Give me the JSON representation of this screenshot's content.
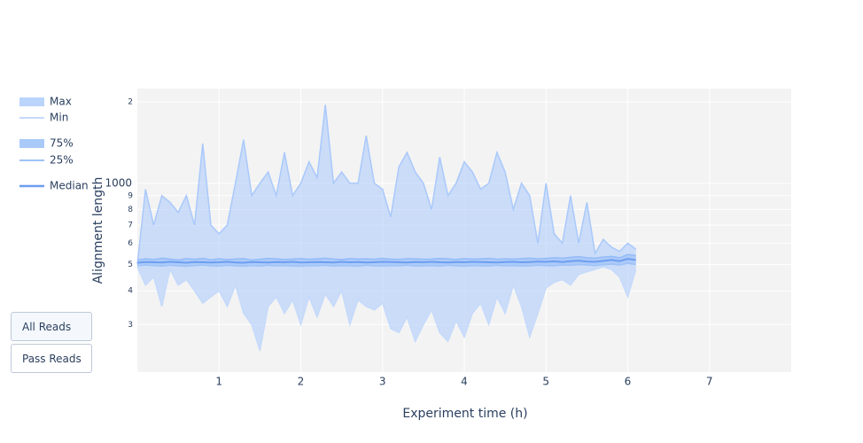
{
  "chart_data": {
    "type": "line",
    "xlabel": "Experiment time (h)",
    "ylabel": "Alignment length",
    "x": [
      0,
      0.1,
      0.2,
      0.3,
      0.4,
      0.5,
      0.6,
      0.7,
      0.8,
      0.9,
      1.0,
      1.1,
      1.2,
      1.3,
      1.4,
      1.5,
      1.6,
      1.7,
      1.8,
      1.9,
      2.0,
      2.1,
      2.2,
      2.3,
      2.4,
      2.5,
      2.6,
      2.7,
      2.8,
      2.9,
      3.0,
      3.1,
      3.2,
      3.3,
      3.4,
      3.5,
      3.6,
      3.7,
      3.8,
      3.9,
      4.0,
      4.1,
      4.2,
      4.3,
      4.4,
      4.5,
      4.6,
      4.7,
      4.8,
      4.9,
      5.0,
      5.1,
      5.2,
      5.3,
      5.4,
      5.5,
      5.6,
      5.7,
      5.8,
      5.9,
      6.0,
      6.1
    ],
    "series": [
      {
        "name": "Max",
        "color": "#a9c9fb",
        "fill": true,
        "values": [
          500,
          950,
          700,
          900,
          850,
          780,
          900,
          700,
          1400,
          700,
          650,
          700,
          1000,
          1450,
          900,
          1000,
          1100,
          900,
          1300,
          900,
          1000,
          1200,
          1050,
          1950,
          1000,
          1100,
          1000,
          1000,
          1500,
          1000,
          950,
          750,
          1150,
          1300,
          1100,
          1000,
          800,
          1250,
          900,
          1000,
          1200,
          1100,
          950,
          1000,
          1300,
          1100,
          800,
          1000,
          900,
          600,
          1000,
          650,
          600,
          900,
          600,
          850,
          550,
          620,
          580,
          560,
          600,
          570
        ]
      },
      {
        "name": "Min",
        "color": "#c5dafb",
        "fill": false,
        "values": [
          490,
          420,
          450,
          350,
          480,
          420,
          440,
          400,
          360,
          380,
          400,
          350,
          420,
          330,
          300,
          240,
          350,
          380,
          330,
          370,
          300,
          380,
          320,
          390,
          350,
          400,
          300,
          370,
          350,
          340,
          360,
          290,
          280,
          320,
          260,
          300,
          340,
          280,
          260,
          310,
          270,
          330,
          360,
          300,
          380,
          330,
          420,
          350,
          270,
          330,
          410,
          430,
          440,
          420,
          460,
          470,
          480,
          490,
          480,
          450,
          380,
          480
        ]
      },
      {
        "name": "75%",
        "color": "#94bbf7",
        "fill": true,
        "values": [
          520,
          525,
          522,
          528,
          524,
          520,
          526,
          523,
          527,
          521,
          525,
          522,
          524,
          526,
          520,
          523,
          527,
          525,
          522,
          524,
          526,
          523,
          525,
          528,
          524,
          522,
          526,
          524,
          525,
          523,
          527,
          524,
          522,
          526,
          525,
          523,
          524,
          527,
          525,
          522,
          526,
          524,
          525,
          527,
          523,
          525,
          524,
          526,
          528,
          525,
          527,
          530,
          528,
          532,
          535,
          530,
          528,
          533,
          536,
          530,
          545,
          540
        ]
      },
      {
        "name": "25%",
        "color": "#9ec2f8",
        "fill": false,
        "values": [
          495,
          498,
          496,
          494,
          497,
          495,
          493,
          496,
          498,
          495,
          494,
          497,
          495,
          493,
          496,
          494,
          497,
          495,
          496,
          494,
          493,
          496,
          495,
          497,
          494,
          496,
          495,
          493,
          497,
          495,
          494,
          496,
          495,
          497,
          494,
          495,
          496,
          494,
          497,
          495,
          493,
          496,
          495,
          494,
          497,
          495,
          496,
          494,
          495,
          497,
          496,
          495,
          498,
          497,
          500,
          498,
          496,
          499,
          502,
          498,
          505,
          500
        ]
      },
      {
        "name": "Median",
        "color": "#6d9ef0",
        "fill": false,
        "values": [
          508,
          511,
          510,
          509,
          512,
          510,
          508,
          511,
          510,
          509,
          510,
          512,
          509,
          508,
          511,
          510,
          509,
          511,
          510,
          512,
          509,
          510,
          511,
          510,
          509,
          512,
          510,
          511,
          509,
          510,
          512,
          511,
          510,
          509,
          511,
          510,
          512,
          510,
          509,
          511,
          510,
          512,
          511,
          510,
          509,
          511,
          512,
          510,
          511,
          513,
          512,
          514,
          511,
          515,
          517,
          513,
          512,
          516,
          520,
          515,
          525,
          520
        ]
      }
    ],
    "xlim": [
      0,
      8
    ],
    "xticks": [
      1,
      2,
      3,
      4,
      5,
      6,
      7
    ],
    "ylim": [
      200,
      2240
    ],
    "log_y": true,
    "grid": true,
    "yticks": [
      {
        "value": 300,
        "label": "3"
      },
      {
        "value": 400,
        "label": "4"
      },
      {
        "value": 500,
        "label": "5"
      },
      {
        "value": 600,
        "label": "6"
      },
      {
        "value": 700,
        "label": "7"
      },
      {
        "value": 800,
        "label": "8"
      },
      {
        "value": 900,
        "label": "9"
      },
      1000,
      {
        "value": 2000,
        "label": "2"
      }
    ]
  },
  "buttons": [
    "All Reads",
    "Pass Reads"
  ]
}
